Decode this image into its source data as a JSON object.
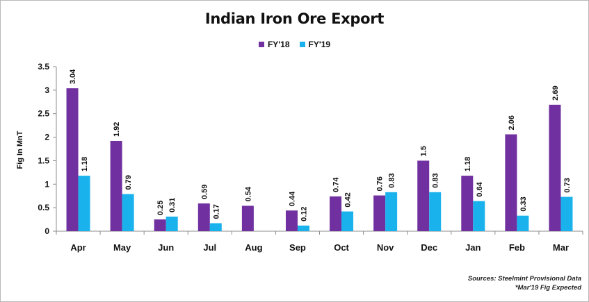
{
  "chart_data": {
    "type": "bar",
    "title": "Indian Iron Ore Export",
    "xlabel": "",
    "ylabel": "Fig In MnT",
    "ylim": [
      0,
      3.5
    ],
    "yticks": [
      "0",
      "0.5",
      "1",
      "1.5",
      "2",
      "2.5",
      "3",
      "3.5"
    ],
    "grid": false,
    "legend_position": "top-center",
    "categories": [
      "Apr",
      "May",
      "Jun",
      "Jul",
      "Aug",
      "Sep",
      "Oct",
      "Nov",
      "Dec",
      "Jan",
      "Feb",
      "Mar"
    ],
    "series": [
      {
        "name": "FY'18",
        "color": "#7030a0",
        "values": [
          3.04,
          1.92,
          0.25,
          0.59,
          0.54,
          0.44,
          0.74,
          0.76,
          1.5,
          1.18,
          2.06,
          2.69
        ],
        "labels": [
          "3.04",
          "1.92",
          "0.25",
          "0.59",
          "0.54",
          "0.44",
          "0.74",
          "0.76",
          "1.5",
          "1.18",
          "2.06",
          "2.69"
        ]
      },
      {
        "name": "FY'19",
        "color": "#1ab2ec",
        "values": [
          1.18,
          0.79,
          0.31,
          0.17,
          null,
          0.12,
          0.42,
          0.83,
          0.83,
          0.64,
          0.33,
          0.73
        ],
        "labels": [
          "1.18",
          "0.79",
          "0.31",
          "0.17",
          "",
          "0.12",
          "0.42",
          "0.83",
          "0.83",
          "0.64",
          "0.33",
          "0.73"
        ]
      }
    ],
    "footnotes": [
      "Sources: Steelmint Provisional Data",
      "*Mar'19 Fig Expected"
    ]
  }
}
